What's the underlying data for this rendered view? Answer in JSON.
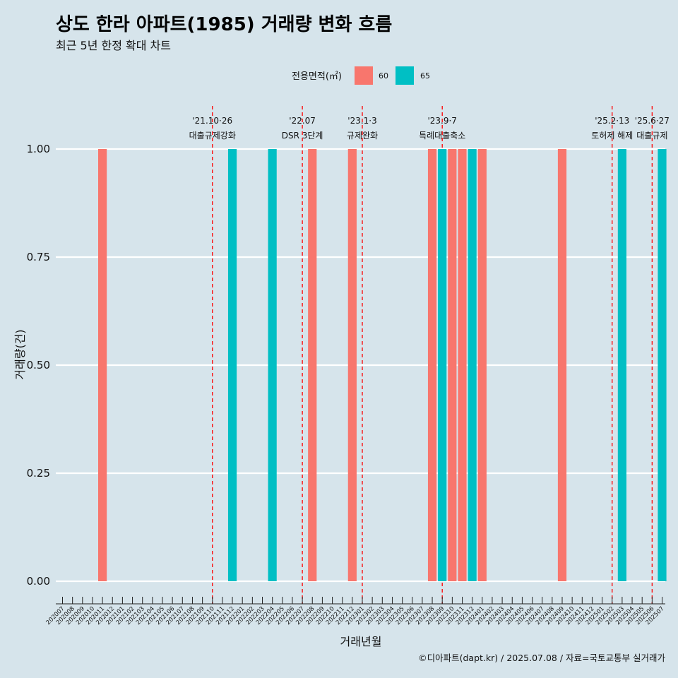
{
  "chart_data": {
    "type": "bar",
    "title": "상도 한라 아파트(1985) 거래량 변화 흐름",
    "subtitle": "최근 5년 한정 확대 차트",
    "xlabel": "거래년월",
    "ylabel": "거래량(건)",
    "ylim": [
      0,
      1
    ],
    "yticks": [
      "0.00",
      "0.25",
      "0.50",
      "0.75",
      "1.00"
    ],
    "grid": true,
    "legend": {
      "title": "전용면적(㎡)",
      "position": "top",
      "items": [
        {
          "name": "60",
          "color": "#f8766d"
        },
        {
          "name": "65",
          "color": "#00bfc4"
        }
      ]
    },
    "categories": [
      "202007",
      "202008",
      "202009",
      "202010",
      "202011",
      "202012",
      "202101",
      "202102",
      "202103",
      "202104",
      "202105",
      "202106",
      "202107",
      "202108",
      "202109",
      "202110",
      "202111",
      "202112",
      "202201",
      "202202",
      "202203",
      "202204",
      "202205",
      "202206",
      "202207",
      "202208",
      "202209",
      "202210",
      "202211",
      "202212",
      "202301",
      "202302",
      "202303",
      "202304",
      "202305",
      "202306",
      "202307",
      "202308",
      "202309",
      "202310",
      "202311",
      "202312",
      "202401",
      "202402",
      "202403",
      "202404",
      "202405",
      "202406",
      "202407",
      "202408",
      "202409",
      "202410",
      "202411",
      "202412",
      "202501",
      "202502",
      "202503",
      "202504",
      "202505",
      "202506",
      "202507"
    ],
    "bars": [
      {
        "month": "202011",
        "series": "60",
        "value": 1
      },
      {
        "month": "202112",
        "series": "65",
        "value": 1
      },
      {
        "month": "202204",
        "series": "65",
        "value": 1
      },
      {
        "month": "202208",
        "series": "60",
        "value": 1
      },
      {
        "month": "202212",
        "series": "60",
        "value": 1
      },
      {
        "month": "202308",
        "series": "60",
        "value": 1
      },
      {
        "month": "202309",
        "series": "65",
        "value": 1
      },
      {
        "month": "202310",
        "series": "60",
        "value": 1
      },
      {
        "month": "202311",
        "series": "60",
        "value": 1
      },
      {
        "month": "202312",
        "series": "65",
        "value": 1
      },
      {
        "month": "202401",
        "series": "60",
        "value": 1
      },
      {
        "month": "202409",
        "series": "60",
        "value": 1
      },
      {
        "month": "202503",
        "series": "65",
        "value": 1
      },
      {
        "month": "202507",
        "series": "65",
        "value": 1
      }
    ],
    "annotations": [
      {
        "month": "202110",
        "date": "'21.10·26",
        "label": "대출규제강화"
      },
      {
        "month": "202207",
        "date": "'22.07",
        "label": "DSR 3단계"
      },
      {
        "month": "202301",
        "date": "'23.1·3",
        "label": "규제완화"
      },
      {
        "month": "202309",
        "date": "'23.9·7",
        "label": "특례대출축소"
      },
      {
        "month": "202502",
        "date": "'25.2·13",
        "label": "토허제 해제"
      },
      {
        "month": "202506",
        "date": "'25.6·27",
        "label": "대출규제"
      }
    ],
    "annotation_color": "#ff0000"
  },
  "caption": "©디아파트(dapt.kr) / 2025.07.08 / 자료=국토교통부 실거래가"
}
